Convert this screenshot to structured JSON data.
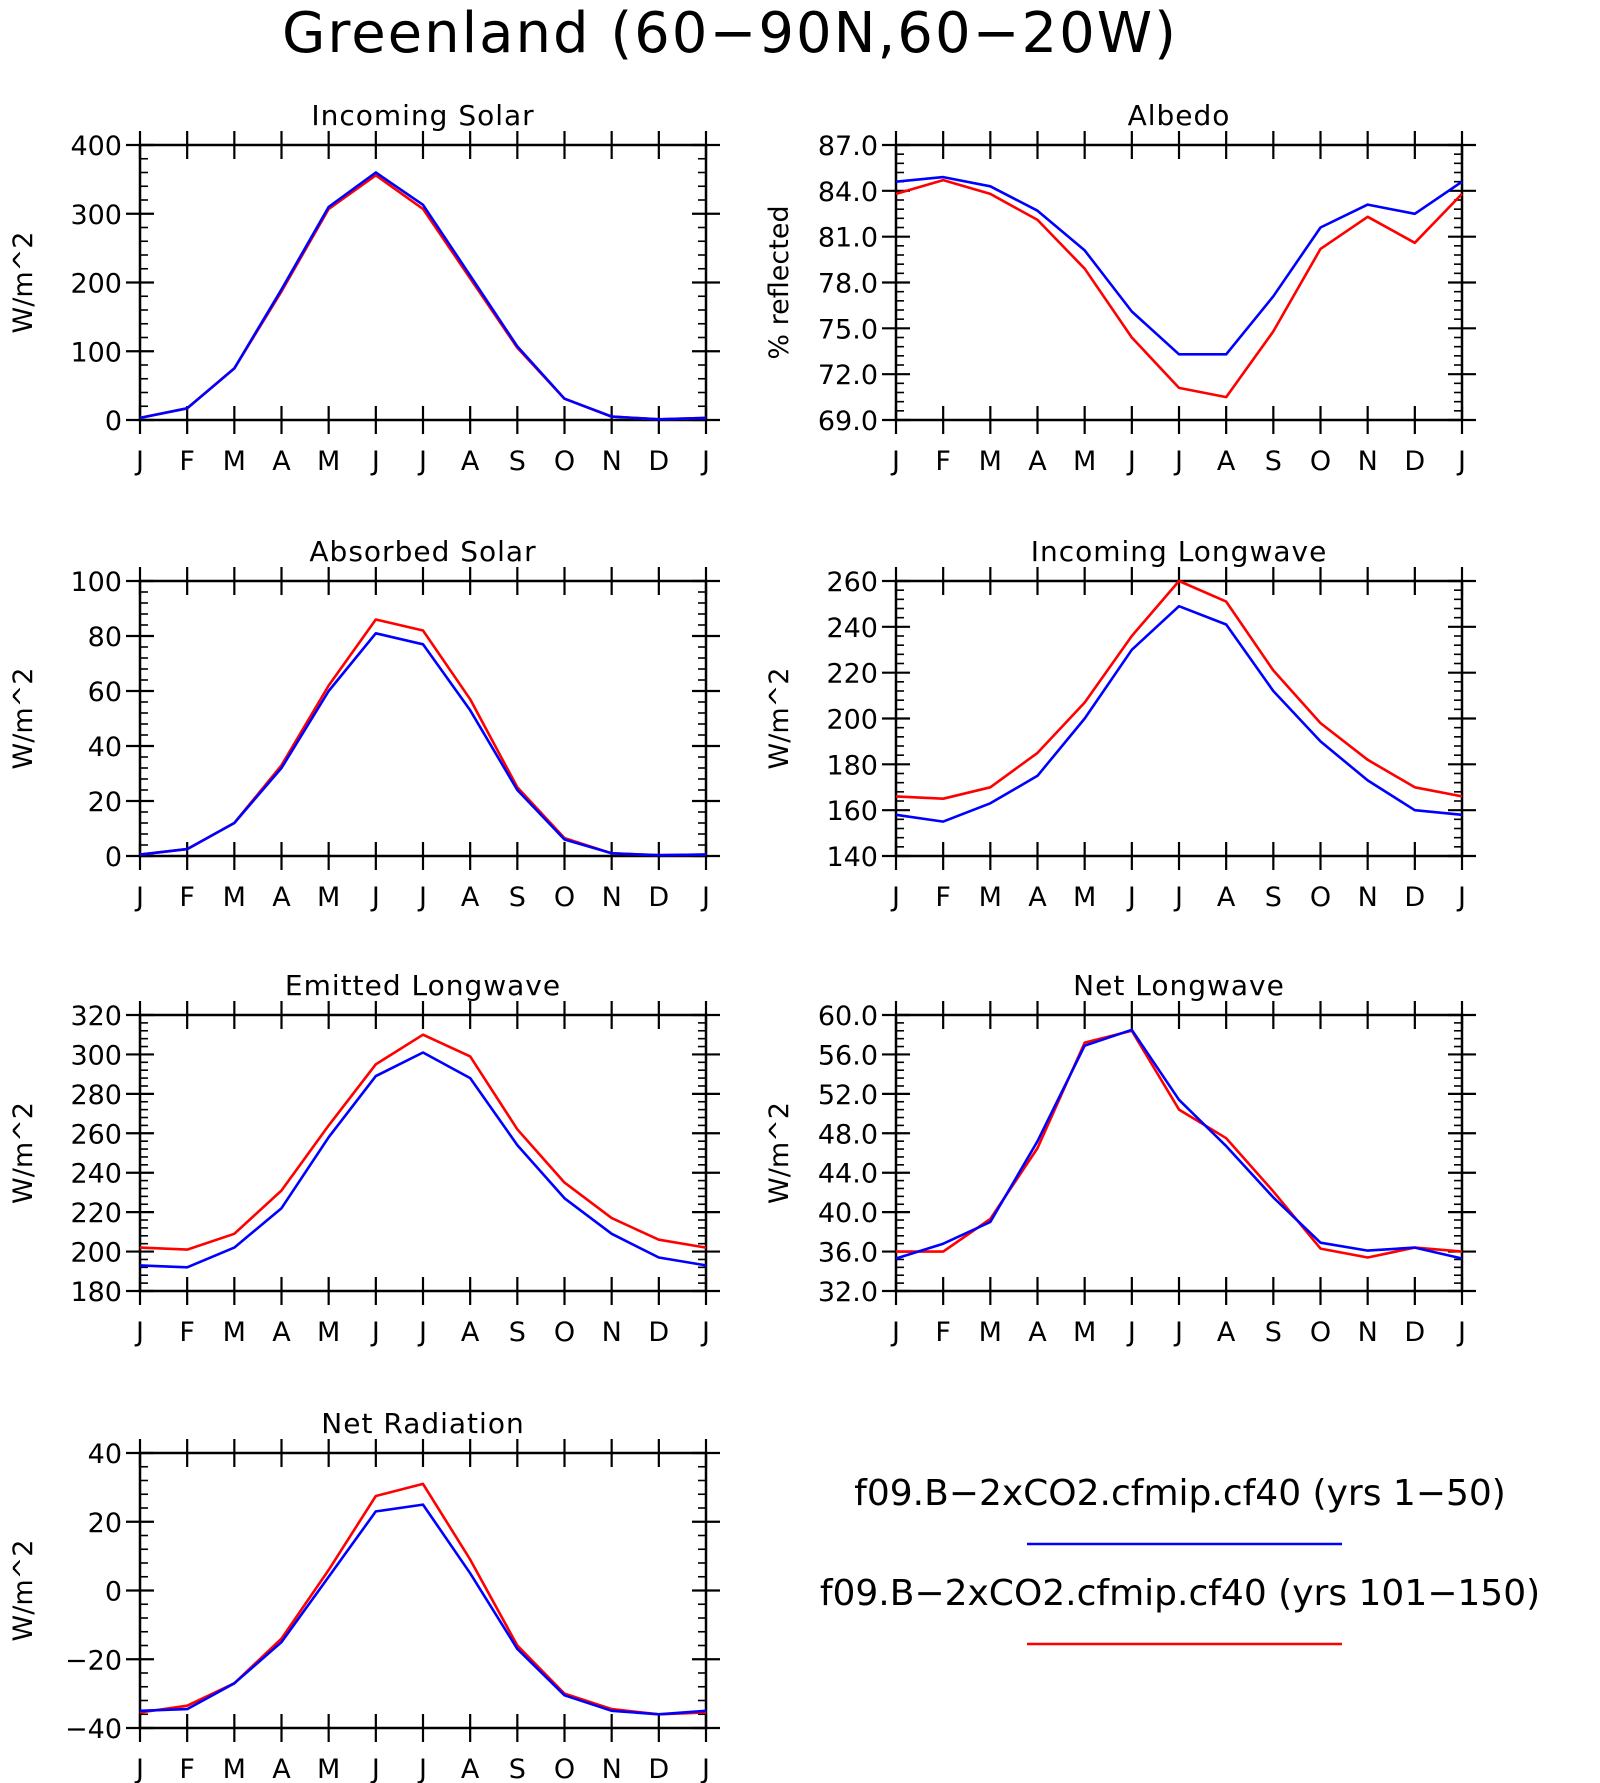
{
  "figure": {
    "title": "Greenland (60−90N,60−20W)"
  },
  "colors": {
    "series_1": "#0000ff",
    "series_2": "#ff0000",
    "axis": "#000000"
  },
  "legend": {
    "placement": "lower-right",
    "entries": [
      {
        "label": "f09.B−2xCO2.cfmip.cf40 (yrs 1−50)",
        "color": "#0000ff"
      },
      {
        "label": "f09.B−2xCO2.cfmip.cf40 (yrs 101−150)",
        "color": "#ff0000"
      }
    ]
  },
  "chart_data": [
    {
      "type": "line",
      "title": "Incoming Solar",
      "xlabel": "",
      "ylabel": "W/m^2",
      "ylim": [
        0,
        400
      ],
      "yticks": [
        "0",
        "100",
        "200",
        "300",
        "400"
      ],
      "categories": [
        "J",
        "F",
        "M",
        "A",
        "M",
        "J",
        "J",
        "A",
        "S",
        "O",
        "N",
        "D",
        "J"
      ],
      "series": [
        {
          "name": "f09.B−2xCO2.cfmip.cf40 (yrs 1−50)",
          "color": "#0000ff",
          "values": [
            3,
            17,
            75,
            190,
            310,
            360,
            313,
            210,
            107,
            31,
            5,
            1,
            3
          ]
        },
        {
          "name": "f09.B−2xCO2.cfmip.cf40 (yrs 101−150)",
          "color": "#ff0000",
          "values": [
            3,
            17,
            75,
            187,
            307,
            356,
            307,
            206,
            105,
            31,
            5,
            1,
            3
          ]
        }
      ]
    },
    {
      "type": "line",
      "title": "Albedo",
      "xlabel": "",
      "ylabel": "% reflected",
      "ylim": [
        69,
        87
      ],
      "yticks": [
        "69.0",
        "72.0",
        "75.0",
        "78.0",
        "81.0",
        "84.0",
        "87.0"
      ],
      "categories": [
        "J",
        "F",
        "M",
        "A",
        "M",
        "J",
        "J",
        "A",
        "S",
        "O",
        "N",
        "D",
        "J"
      ],
      "series": [
        {
          "name": "f09.B−2xCO2.cfmip.cf40 (yrs 1−50)",
          "color": "#0000ff",
          "values": [
            84.6,
            84.9,
            84.3,
            82.7,
            80.1,
            76.1,
            73.3,
            73.3,
            77.1,
            81.6,
            83.1,
            82.5,
            84.6
          ]
        },
        {
          "name": "f09.B−2xCO2.cfmip.cf40 (yrs 101−150)",
          "color": "#ff0000",
          "values": [
            83.8,
            84.7,
            83.8,
            82.1,
            78.9,
            74.4,
            71.1,
            70.5,
            74.8,
            80.2,
            82.3,
            80.6,
            83.8
          ]
        }
      ]
    },
    {
      "type": "line",
      "title": "Absorbed Solar",
      "xlabel": "",
      "ylabel": "W/m^2",
      "ylim": [
        0,
        100
      ],
      "yticks": [
        "0",
        "20",
        "40",
        "60",
        "80",
        "100"
      ],
      "categories": [
        "J",
        "F",
        "M",
        "A",
        "M",
        "J",
        "J",
        "A",
        "S",
        "O",
        "N",
        "D",
        "J"
      ],
      "series": [
        {
          "name": "f09.B−2xCO2.cfmip.cf40 (yrs 1−50)",
          "color": "#0000ff",
          "values": [
            0.5,
            2.5,
            12,
            32,
            60,
            81,
            77,
            53,
            24,
            6,
            1,
            0.3,
            0.5
          ]
        },
        {
          "name": "f09.B−2xCO2.cfmip.cf40 (yrs 101−150)",
          "color": "#ff0000",
          "values": [
            0.5,
            2.5,
            12,
            33,
            62,
            86,
            82,
            57,
            25,
            6.5,
            1,
            0.3,
            0.5
          ]
        }
      ]
    },
    {
      "type": "line",
      "title": "Incoming Longwave",
      "xlabel": "",
      "ylabel": "W/m^2",
      "ylim": [
        140,
        260
      ],
      "yticks": [
        "140",
        "160",
        "180",
        "200",
        "220",
        "240",
        "260"
      ],
      "categories": [
        "J",
        "F",
        "M",
        "A",
        "M",
        "J",
        "J",
        "A",
        "S",
        "O",
        "N",
        "D",
        "J"
      ],
      "series": [
        {
          "name": "f09.B−2xCO2.cfmip.cf40 (yrs 1−50)",
          "color": "#0000ff",
          "values": [
            158,
            155,
            163,
            175,
            200,
            230,
            249,
            241,
            212,
            190,
            173,
            160,
            158
          ]
        },
        {
          "name": "f09.B−2xCO2.cfmip.cf40 (yrs 101−150)",
          "color": "#ff0000",
          "values": [
            166,
            165,
            170,
            185,
            207,
            236,
            260,
            251,
            221,
            198,
            182,
            170,
            166
          ]
        }
      ]
    },
    {
      "type": "line",
      "title": "Emitted Longwave",
      "xlabel": "",
      "ylabel": "W/m^2",
      "ylim": [
        180,
        320
      ],
      "yticks": [
        "180",
        "200",
        "220",
        "240",
        "260",
        "280",
        "300",
        "320"
      ],
      "categories": [
        "J",
        "F",
        "M",
        "A",
        "M",
        "J",
        "J",
        "A",
        "S",
        "O",
        "N",
        "D",
        "J"
      ],
      "series": [
        {
          "name": "f09.B−2xCO2.cfmip.cf40 (yrs 1−50)",
          "color": "#0000ff",
          "values": [
            193,
            192,
            202,
            222,
            258,
            289,
            301,
            288,
            254,
            227,
            209,
            197,
            193
          ]
        },
        {
          "name": "f09.B−2xCO2.cfmip.cf40 (yrs 101−150)",
          "color": "#ff0000",
          "values": [
            202,
            201,
            209,
            231,
            264,
            295,
            310,
            299,
            262,
            235,
            217,
            206,
            202
          ]
        }
      ]
    },
    {
      "type": "line",
      "title": "Net Longwave",
      "xlabel": "",
      "ylabel": "W/m^2",
      "ylim": [
        32,
        60
      ],
      "yticks": [
        "32.0",
        "36.0",
        "40.0",
        "44.0",
        "48.0",
        "52.0",
        "56.0",
        "60.0"
      ],
      "categories": [
        "J",
        "F",
        "M",
        "A",
        "M",
        "J",
        "J",
        "A",
        "S",
        "O",
        "N",
        "D",
        "J"
      ],
      "series": [
        {
          "name": "f09.B−2xCO2.cfmip.cf40 (yrs 1−50)",
          "color": "#0000ff",
          "values": [
            35.3,
            36.8,
            39.0,
            47.2,
            56.9,
            58.5,
            51.4,
            46.7,
            41.5,
            36.9,
            36.1,
            36.4,
            35.3
          ]
        },
        {
          "name": "f09.B−2xCO2.cfmip.cf40 (yrs 101−150)",
          "color": "#ff0000",
          "values": [
            36.0,
            36.0,
            39.3,
            46.5,
            57.2,
            58.4,
            50.4,
            47.5,
            42.1,
            36.3,
            35.4,
            36.4,
            36.0
          ]
        }
      ]
    },
    {
      "type": "line",
      "title": "Net Radiation",
      "xlabel": "",
      "ylabel": "W/m^2",
      "ylim": [
        -40,
        40
      ],
      "yticks": [
        "−40",
        "−20",
        "0",
        "20",
        "40"
      ],
      "categories": [
        "J",
        "F",
        "M",
        "A",
        "M",
        "J",
        "J",
        "A",
        "S",
        "O",
        "N",
        "D",
        "J"
      ],
      "series": [
        {
          "name": "f09.B−2xCO2.cfmip.cf40 (yrs 1−50)",
          "color": "#0000ff",
          "values": [
            -35,
            -34.5,
            -27,
            -15,
            4,
            23,
            25,
            5,
            -17,
            -30.5,
            -35,
            -36,
            -35
          ]
        },
        {
          "name": "f09.B−2xCO2.cfmip.cf40 (yrs 101−150)",
          "color": "#ff0000",
          "values": [
            -35.5,
            -33.5,
            -27,
            -14,
            6,
            27.5,
            31,
            9,
            -16,
            -30,
            -34.5,
            -36,
            -35.5
          ]
        }
      ]
    }
  ]
}
